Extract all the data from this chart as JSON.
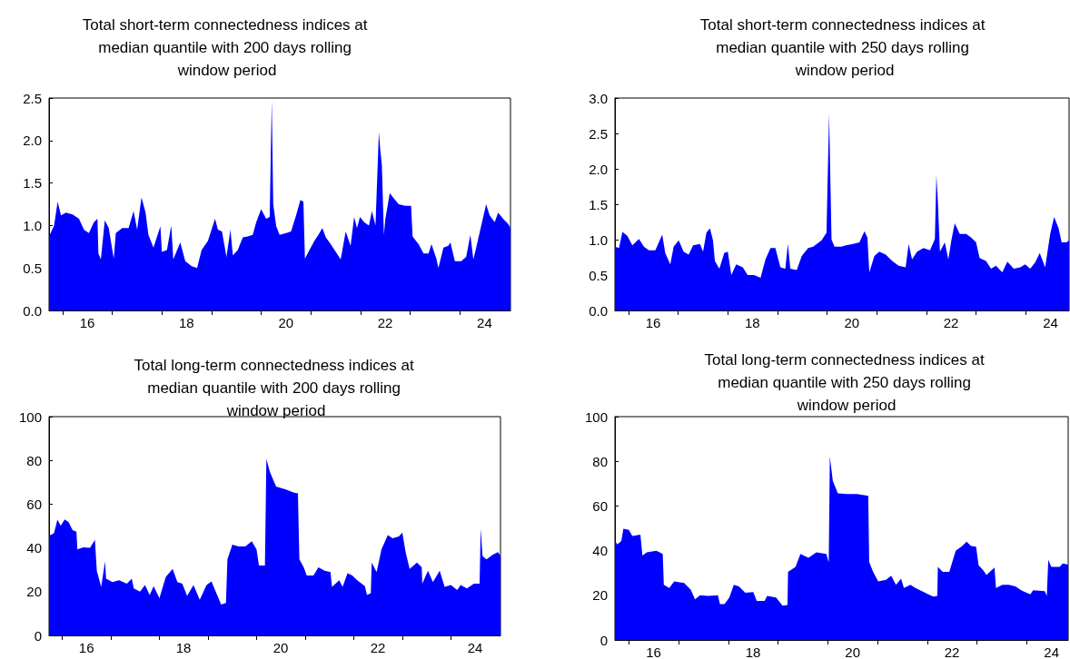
{
  "chart_data": [
    {
      "type": "area",
      "title": "Total short-term connectedness indices at median quantile with 200 days rolling window period",
      "color": "#0000ff",
      "xlim": [
        "2015-09-24",
        "2025-01-08"
      ],
      "ylim": [
        0,
        2.5
      ],
      "xticks": [
        {
          "value": "2016-01-01",
          "label": null
        },
        {
          "value": "2016-07-01",
          "label": "16"
        },
        {
          "value": "2017-01-01",
          "label": null
        },
        {
          "value": "2018-01-01",
          "label": null
        },
        {
          "value": "2018-07-01",
          "label": "18"
        },
        {
          "value": "2019-01-01",
          "label": null
        },
        {
          "value": "2020-01-01",
          "label": null
        },
        {
          "value": "2020-07-01",
          "label": "20"
        },
        {
          "value": "2021-01-01",
          "label": null
        },
        {
          "value": "2022-01-01",
          "label": null
        },
        {
          "value": "2022-07-01",
          "label": "22"
        },
        {
          "value": "2023-01-01",
          "label": null
        },
        {
          "value": "2024-01-01",
          "label": null
        },
        {
          "value": "2024-07-01",
          "label": "24"
        }
      ],
      "yticks": [
        {
          "value": 0,
          "label": "0.0"
        },
        0.5,
        {
          "value": 1,
          "label": "1.0"
        },
        1.5,
        {
          "value": 2,
          "label": "2.0"
        },
        2.5
      ],
      "x": [
        "2015-09-24",
        "2015-10-31",
        "2015-11-26",
        "2015-12-21",
        "2016-01-27",
        "2016-03-15",
        "2016-05-01",
        "2016-06-07",
        "2016-07-13",
        "2016-08-19",
        "2016-09-14",
        "2016-09-21",
        "2016-10-09",
        "2016-11-07",
        "2016-12-06",
        "2017-01-12",
        "2017-01-27",
        "2017-03-15",
        "2017-05-01",
        "2017-06-07",
        "2017-07-03",
        "2017-08-04",
        "2017-09-03",
        "2017-09-24",
        "2017-10-31",
        "2017-12-21",
        "2018-01-01",
        "2018-02-07",
        "2018-03-11",
        "2018-03-26",
        "2018-05-16",
        "2018-06-22",
        "2018-08-08",
        "2018-09-17",
        "2018-10-20",
        "2018-12-06",
        "2019-01-27",
        "2019-02-17",
        "2019-03-19",
        "2019-04-21",
        "2019-05-20",
        "2019-06-07",
        "2019-07-13",
        "2019-08-19",
        "2019-09-24",
        "2019-10-31",
        "2019-11-26",
        "2020-01-01",
        "2020-02-07",
        "2020-03-04",
        "2020-03-19",
        "2020-03-30",
        "2020-04-21",
        "2020-05-16",
        "2020-07-03",
        "2020-08-08",
        "2020-09-14",
        "2020-10-16",
        "2020-11-07",
        "2020-11-18",
        "2020-12-21",
        "2021-01-27",
        "2021-02-25",
        "2021-03-26",
        "2021-04-21",
        "2021-05-27",
        "2021-07-03",
        "2021-08-08",
        "2021-09-14",
        "2021-10-20",
        "2021-11-15",
        "2021-12-06",
        "2021-12-28",
        "2022-01-27",
        "2022-03-04",
        "2022-03-26",
        "2022-04-21",
        "2022-05-16",
        "2022-05-27",
        "2022-06-07",
        "2022-06-22",
        "2022-07-03",
        "2022-08-04",
        "2022-09-03",
        "2022-10-09",
        "2022-11-26",
        "2023-01-08",
        "2023-01-19",
        "2023-03-04",
        "2023-04-10",
        "2023-05-16",
        "2023-06-07",
        "2023-07-13",
        "2023-07-28",
        "2023-09-03",
        "2023-10-09",
        "2023-10-24",
        "2023-11-26",
        "2024-01-12",
        "2024-02-17",
        "2024-03-19",
        "2024-04-10",
        "2024-05-01",
        "2024-06-07",
        "2024-07-13",
        "2024-08-08",
        "2024-09-14",
        "2024-10-09",
        "2024-11-15",
        "2024-12-21",
        "2025-01-08"
      ],
      "values": [
        0.87,
        1.0,
        1.28,
        1.12,
        1.15,
        1.13,
        1.08,
        0.95,
        0.91,
        1.04,
        1.08,
        0.67,
        0.6,
        1.06,
        0.97,
        0.61,
        0.91,
        0.97,
        0.97,
        1.17,
        0.95,
        1.33,
        1.15,
        0.89,
        0.74,
        0.99,
        0.69,
        0.71,
        1.0,
        0.6,
        0.8,
        0.58,
        0.52,
        0.5,
        0.71,
        0.82,
        1.08,
        0.95,
        0.93,
        0.63,
        0.95,
        0.65,
        0.71,
        0.86,
        0.87,
        0.89,
        1.04,
        1.19,
        1.08,
        1.1,
        2.47,
        1.25,
        0.99,
        0.89,
        0.91,
        0.93,
        1.12,
        1.3,
        1.28,
        0.61,
        0.71,
        0.82,
        0.89,
        0.97,
        0.86,
        0.78,
        0.69,
        0.6,
        0.93,
        0.76,
        1.1,
        0.97,
        1.1,
        1.04,
        1.0,
        1.17,
        1.0,
        2.1,
        1.88,
        1.71,
        0.89,
        1.08,
        1.38,
        1.32,
        1.25,
        1.23,
        1.23,
        0.87,
        0.78,
        0.67,
        0.67,
        0.78,
        0.61,
        0.5,
        0.74,
        0.76,
        0.8,
        0.58,
        0.58,
        0.63,
        0.89,
        0.6,
        0.74,
        1.0,
        1.25,
        1.12,
        1.04,
        1.15,
        1.08,
        1.02,
        0.97
      ]
    },
    {
      "type": "area",
      "title": "Total short-term connectedness indices at median quantile with 250 days rolling window period",
      "color": "#0000ff",
      "xlim": [
        "2015-09-24",
        "2024-11-15"
      ],
      "ylim": [
        0,
        3
      ],
      "xticks": [
        {
          "value": "2016-01-01",
          "label": null
        },
        {
          "value": "2016-07-01",
          "label": "16"
        },
        {
          "value": "2017-01-01",
          "label": null
        },
        {
          "value": "2018-01-01",
          "label": null
        },
        {
          "value": "2018-07-01",
          "label": "18"
        },
        {
          "value": "2019-01-01",
          "label": null
        },
        {
          "value": "2020-01-01",
          "label": null
        },
        {
          "value": "2020-07-01",
          "label": "20"
        },
        {
          "value": "2021-01-01",
          "label": null
        },
        {
          "value": "2022-01-01",
          "label": null
        },
        {
          "value": "2022-07-01",
          "label": "22"
        },
        {
          "value": "2023-01-01",
          "label": null
        },
        {
          "value": "2024-01-01",
          "label": null
        },
        {
          "value": "2024-07-01",
          "label": "24"
        }
      ],
      "yticks": [
        {
          "value": 0,
          "label": "0.0"
        },
        0.5,
        {
          "value": 1,
          "label": "1.0"
        },
        1.5,
        {
          "value": 2,
          "label": "2.0"
        },
        2.5,
        {
          "value": 3,
          "label": "3.0"
        }
      ],
      "x": [
        "2015-09-24",
        "2015-10-24",
        "2015-11-18",
        "2015-12-25",
        "2016-01-30",
        "2016-03-19",
        "2016-04-24",
        "2016-05-31",
        "2016-07-17",
        "2016-09-06",
        "2016-09-28",
        "2016-11-04",
        "2016-11-29",
        "2017-01-05",
        "2017-02-10",
        "2017-03-19",
        "2017-04-21",
        "2017-06-11",
        "2017-07-03",
        "2017-07-28",
        "2017-08-23",
        "2017-09-14",
        "2017-09-28",
        "2017-10-31",
        "2017-12-06",
        "2018-01-01",
        "2018-01-27",
        "2018-03-04",
        "2018-04-21",
        "2018-05-27",
        "2018-07-13",
        "2018-08-30",
        "2018-10-05",
        "2018-11-11",
        "2018-12-17",
        "2019-01-23",
        "2019-02-28",
        "2019-03-19",
        "2019-04-06",
        "2019-05-23",
        "2019-06-29",
        "2019-08-15",
        "2019-09-21",
        "2019-11-22",
        "2019-12-28",
        "2020-01-16",
        "2020-02-03",
        "2020-02-25",
        "2020-04-13",
        "2020-05-20",
        "2020-07-10",
        "2020-08-26",
        "2020-10-02",
        "2020-10-24",
        "2020-11-07",
        "2020-12-14",
        "2021-01-19",
        "2021-03-08",
        "2021-04-24",
        "2021-06-11",
        "2021-08-01",
        "2021-08-23",
        "2021-09-17",
        "2021-10-24",
        "2021-12-10",
        "2022-01-27",
        "2022-03-04",
        "2022-03-15",
        "2022-03-26",
        "2022-04-10",
        "2022-05-16",
        "2022-06-11",
        "2022-07-03",
        "2022-07-28",
        "2022-09-03",
        "2022-10-20",
        "2022-11-26",
        "2023-01-01",
        "2023-01-27",
        "2023-03-15",
        "2023-04-21",
        "2023-05-27",
        "2023-07-13",
        "2023-08-19",
        "2023-10-05",
        "2023-11-22",
        "2023-12-28",
        "2024-02-03",
        "2024-03-11",
        "2024-04-13",
        "2024-05-23",
        "2024-06-29",
        "2024-07-28",
        "2024-08-30",
        "2024-09-21",
        "2024-10-27",
        "2024-11-15"
      ],
      "values": [
        0.9,
        0.88,
        1.11,
        1.05,
        0.92,
        1.01,
        0.9,
        0.85,
        0.85,
        1.07,
        0.81,
        0.65,
        0.9,
        0.99,
        0.83,
        0.79,
        0.92,
        0.94,
        0.83,
        1.1,
        1.16,
        0.99,
        0.7,
        0.59,
        0.81,
        0.83,
        0.5,
        0.65,
        0.61,
        0.5,
        0.5,
        0.46,
        0.72,
        0.88,
        0.88,
        0.61,
        0.59,
        0.94,
        0.59,
        0.57,
        0.77,
        0.88,
        0.9,
        0.99,
        1.1,
        2.78,
        1.0,
        0.9,
        0.9,
        0.92,
        0.94,
        0.96,
        1.12,
        1.03,
        0.54,
        0.77,
        0.83,
        0.79,
        0.7,
        0.63,
        0.61,
        0.94,
        0.72,
        0.83,
        0.88,
        0.85,
        1.01,
        1.91,
        1.54,
        0.83,
        0.96,
        0.72,
        0.99,
        1.23,
        1.08,
        1.08,
        1.03,
        0.96,
        0.74,
        0.7,
        0.59,
        0.63,
        0.54,
        0.69,
        0.59,
        0.61,
        0.65,
        0.59,
        0.68,
        0.81,
        0.61,
        1.08,
        1.32,
        1.16,
        0.96,
        0.96,
        0.99
      ]
    },
    {
      "type": "area",
      "title": "Total long-term connectedness indices at median quantile with 200 days rolling window period",
      "color": "#0000ff",
      "xlim": [
        "2015-09-24",
        "2025-01-08"
      ],
      "ylim": [
        0,
        100
      ],
      "xticks": [
        {
          "value": "2016-01-01",
          "label": null
        },
        {
          "value": "2016-07-01",
          "label": "16"
        },
        {
          "value": "2017-01-01",
          "label": null
        },
        {
          "value": "2018-01-01",
          "label": null
        },
        {
          "value": "2018-07-01",
          "label": "18"
        },
        {
          "value": "2019-01-01",
          "label": null
        },
        {
          "value": "2020-01-01",
          "label": null
        },
        {
          "value": "2020-07-01",
          "label": "20"
        },
        {
          "value": "2021-01-01",
          "label": null
        },
        {
          "value": "2022-01-01",
          "label": null
        },
        {
          "value": "2022-07-01",
          "label": "22"
        },
        {
          "value": "2023-01-01",
          "label": null
        },
        {
          "value": "2024-01-01",
          "label": null
        },
        {
          "value": "2024-07-01",
          "label": "24"
        }
      ],
      "yticks": [
        0,
        20,
        40,
        60,
        80,
        100
      ],
      "x": [
        "2015-09-24",
        "2015-10-31",
        "2015-11-26",
        "2015-12-21",
        "2016-01-19",
        "2016-02-17",
        "2016-03-19",
        "2016-04-17",
        "2016-04-24",
        "2016-06-07",
        "2016-07-28",
        "2016-09-03",
        "2016-09-17",
        "2016-10-20",
        "2016-11-18",
        "2016-11-26",
        "2017-01-12",
        "2017-03-04",
        "2017-05-01",
        "2017-06-07",
        "2017-06-22",
        "2017-08-08",
        "2017-09-14",
        "2017-10-20",
        "2017-11-18",
        "2018-01-01",
        "2018-02-17",
        "2018-04-10",
        "2018-05-16",
        "2018-06-22",
        "2018-07-28",
        "2018-09-14",
        "2018-10-31",
        "2018-12-21",
        "2019-01-27",
        "2019-03-15",
        "2019-04-10",
        "2019-05-16",
        "2019-05-27",
        "2019-07-03",
        "2019-08-19",
        "2019-10-09",
        "2019-11-26",
        "2020-01-01",
        "2020-01-19",
        "2020-03-04",
        "2020-03-15",
        "2020-04-10",
        "2020-05-27",
        "2020-08-08",
        "2020-10-09",
        "2020-11-07",
        "2020-11-18",
        "2020-12-21",
        "2021-01-12",
        "2021-03-04",
        "2021-04-10",
        "2021-05-27",
        "2021-07-10",
        "2021-07-21",
        "2021-09-14",
        "2021-10-09",
        "2021-11-15",
        "2021-12-21",
        "2022-01-27",
        "2022-03-26",
        "2022-04-10",
        "2022-05-09",
        "2022-05-16",
        "2022-06-22",
        "2022-07-28",
        "2022-09-14",
        "2022-10-20",
        "2022-12-06",
        "2023-01-01",
        "2023-01-27",
        "2023-02-25",
        "2023-04-21",
        "2023-05-27",
        "2023-05-31",
        "2023-07-13",
        "2023-08-19",
        "2023-10-09",
        "2023-11-15",
        "2024-01-01",
        "2024-02-17",
        "2024-03-15",
        "2024-05-01",
        "2024-06-22",
        "2024-08-04",
        "2024-08-12",
        "2024-08-26",
        "2024-09-24",
        "2024-11-15",
        "2024-12-21",
        "2025-01-08"
      ],
      "values": [
        45.5,
        46.7,
        52.9,
        50.1,
        53,
        51.9,
        48.1,
        47.4,
        39.3,
        40.3,
        40,
        43.7,
        29.6,
        22.2,
        33.8,
        25.9,
        24.4,
        25.2,
        23.7,
        25.9,
        21.5,
        20,
        23,
        18.5,
        22.5,
        17,
        26.7,
        30.4,
        24.4,
        23.7,
        18.1,
        23,
        16.3,
        23,
        24.7,
        17.8,
        14.1,
        14.8,
        34.8,
        41.5,
        40.7,
        40.7,
        43,
        39.3,
        31.9,
        31.9,
        80.7,
        74.8,
        68.1,
        66.7,
        65.2,
        64.9,
        34.8,
        31.1,
        27.4,
        27.4,
        31.1,
        29.6,
        28.9,
        22.2,
        25.2,
        22.2,
        28.4,
        27.4,
        25.2,
        22.5,
        18.5,
        19.3,
        33.3,
        28.9,
        39.3,
        45.9,
        44.4,
        45.2,
        47,
        37.8,
        30.4,
        33.3,
        31.1,
        23.7,
        29.6,
        24.4,
        29.6,
        22.2,
        23,
        20.7,
        23,
        21.5,
        23.7,
        23.7,
        48.9,
        36.3,
        34.8,
        37,
        38.1,
        36.3
      ]
    },
    {
      "type": "area",
      "title": "Total long-term connectedness indices at median quantile with 250 days rolling window period",
      "color": "#0000ff",
      "xlim": [
        "2015-09-21",
        "2024-10-31"
      ],
      "ylim": [
        0,
        100
      ],
      "xticks": [
        {
          "value": "2016-01-01",
          "label": null
        },
        {
          "value": "2016-07-01",
          "label": "16"
        },
        {
          "value": "2017-01-01",
          "label": null
        },
        {
          "value": "2018-01-01",
          "label": null
        },
        {
          "value": "2018-07-01",
          "label": "18"
        },
        {
          "value": "2019-01-01",
          "label": null
        },
        {
          "value": "2020-01-01",
          "label": null
        },
        {
          "value": "2020-07-01",
          "label": "20"
        },
        {
          "value": "2021-01-01",
          "label": null
        },
        {
          "value": "2022-01-01",
          "label": null
        },
        {
          "value": "2022-07-01",
          "label": "22"
        },
        {
          "value": "2023-01-01",
          "label": null
        },
        {
          "value": "2024-01-01",
          "label": null
        },
        {
          "value": "2024-07-01",
          "label": "24"
        }
      ],
      "yticks": [
        0,
        20,
        40,
        60,
        80,
        100
      ],
      "x": [
        "2015-09-21",
        "2015-10-09",
        "2015-11-07",
        "2015-11-22",
        "2016-01-01",
        "2016-01-27",
        "2016-03-26",
        "2016-04-10",
        "2016-05-12",
        "2016-07-21",
        "2016-09-06",
        "2016-09-14",
        "2016-10-24",
        "2016-11-29",
        "2017-02-10",
        "2017-03-30",
        "2017-05-01",
        "2017-06-07",
        "2017-08-04",
        "2017-10-16",
        "2017-10-31",
        "2017-12-03",
        "2018-01-08",
        "2018-02-10",
        "2018-03-19",
        "2018-05-05",
        "2018-07-03",
        "2018-07-28",
        "2018-09-24",
        "2018-10-13",
        "2018-12-17",
        "2019-02-03",
        "2019-03-11",
        "2019-03-15",
        "2019-05-09",
        "2019-06-14",
        "2019-08-12",
        "2019-10-09",
        "2019-12-21",
        "2020-01-08",
        "2020-01-16",
        "2020-02-07",
        "2020-03-15",
        "2020-05-23",
        "2020-08-04",
        "2020-10-24",
        "2020-10-31",
        "2020-11-29",
        "2021-01-05",
        "2021-03-04",
        "2021-04-10",
        "2021-05-16",
        "2021-06-22",
        "2021-07-13",
        "2021-08-30",
        "2021-10-05",
        "2021-11-22",
        "2022-01-08",
        "2022-02-14",
        "2022-03-15",
        "2022-03-19",
        "2022-04-24",
        "2022-06-11",
        "2022-07-28",
        "2022-09-14",
        "2022-10-16",
        "2022-11-18",
        "2022-12-25",
        "2023-01-12",
        "2023-02-14",
        "2023-03-11",
        "2023-05-09",
        "2023-05-20",
        "2023-07-06",
        "2023-08-23",
        "2023-10-09",
        "2023-11-26",
        "2024-01-27",
        "2024-02-17",
        "2024-05-12",
        "2024-05-27",
        "2024-06-07",
        "2024-06-29",
        "2024-08-30",
        "2024-09-21",
        "2024-10-31"
      ],
      "values": [
        44.3,
        42.8,
        44.3,
        49.8,
        49.3,
        46.5,
        47.2,
        37.8,
        39.2,
        39.9,
        38.5,
        24.7,
        23.3,
        26.2,
        25.5,
        22.6,
        18.2,
        20,
        19.7,
        20,
        16.1,
        16.1,
        19,
        24.7,
        24,
        21.1,
        21.4,
        17.5,
        17.5,
        19.7,
        19,
        15.3,
        15.6,
        30.5,
        32.7,
        38.5,
        36.8,
        39.2,
        38.5,
        34.9,
        82.2,
        71.1,
        65.7,
        65.3,
        65.3,
        64.5,
        34.9,
        30.5,
        26.2,
        26.9,
        28.8,
        24.7,
        27.4,
        23.3,
        24.7,
        23.3,
        21.9,
        20.4,
        19.4,
        19.7,
        32.7,
        30.5,
        30.5,
        39.9,
        42.1,
        44,
        42.1,
        41.8,
        33.4,
        31.3,
        29.1,
        32.4,
        23.3,
        24.7,
        24.7,
        24,
        22.1,
        20.4,
        22.3,
        21.9,
        19.7,
        35.9,
        32.7,
        32.7,
        34.2,
        33.7
      ]
    }
  ]
}
